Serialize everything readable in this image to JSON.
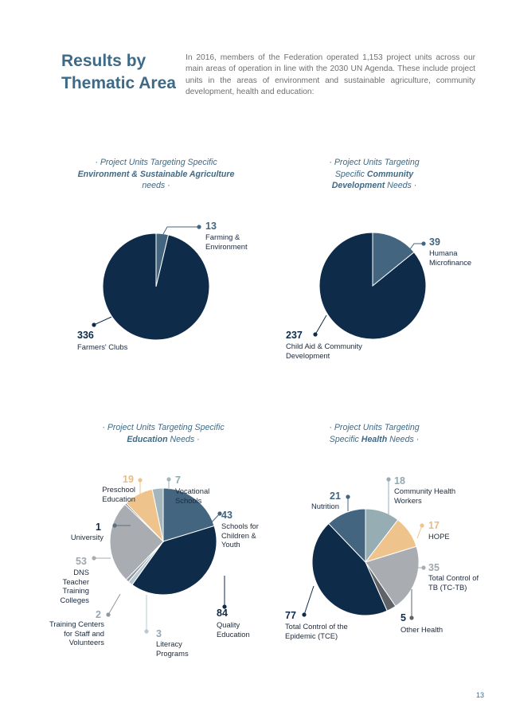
{
  "header": {
    "title_line1": "Results by",
    "title_line2": "Thematic Area",
    "intro": "In 2016, members of the Federation operated 1,153 project units across our main areas of operation in line with the 2030 UN Agenda. These include project units in the areas of environment and sustainable agriculture, community development, health and education:"
  },
  "page_number": "13",
  "chart_data": [
    {
      "type": "pie",
      "title": "· Project Units Targeting Specific Environment & Sustainable Agriculture needs ·",
      "title_parts": {
        "pre": "· Project Units Targeting Specific ",
        "bold": "Environment & Sustainable Agriculture",
        "post": " needs ·"
      },
      "slices": [
        {
          "label": "Farming & Environment",
          "value": 13,
          "color": "#44657f"
        },
        {
          "label": "Farmers' Clubs",
          "value": 336,
          "color": "#0f2b4a"
        }
      ]
    },
    {
      "type": "pie",
      "title": "· Project Units Targeting Specific Community Development Needs ·",
      "title_parts": {
        "pre": "· Project Units Targeting Specific ",
        "bold": "Community Development",
        "post": " Needs ·"
      },
      "slices": [
        {
          "label": "Humana Microfinance",
          "value": 39,
          "color": "#44657f"
        },
        {
          "label": "Child Aid & Community Development",
          "value": 237,
          "color": "#0f2b4a"
        }
      ]
    },
    {
      "type": "pie",
      "title": "· Project Units Targeting Specific Education Needs ·",
      "title_parts": {
        "pre": "· Project Units Targeting Specific ",
        "bold": "Education",
        "post": " Needs ·"
      },
      "slices": [
        {
          "label": "Schools for Children & Youth",
          "value": 43,
          "color": "#44657f"
        },
        {
          "label": "Quality Education",
          "value": 84,
          "color": "#0f2b4a"
        },
        {
          "label": "Literacy Programs",
          "value": 3,
          "color": "#b9c8cf"
        },
        {
          "label": "Training Centers for Staff and Volunteers",
          "value": 2,
          "color": "#8f98a0"
        },
        {
          "label": "DNS Teacher Training Colleges",
          "value": 53,
          "color": "#a9adb1"
        },
        {
          "label": "University",
          "value": 1,
          "color": "#5a6f80"
        },
        {
          "label": "Preschool Education",
          "value": 19,
          "color": "#eec48c"
        },
        {
          "label": "Vocational Schools",
          "value": 7,
          "color": "#a4b6bd"
        }
      ]
    },
    {
      "type": "pie",
      "title": "· Project Units Targeting Specific Health Needs ·",
      "title_parts": {
        "pre": "· Project Units Targeting Specific ",
        "bold": "Health",
        "post": " Needs ·"
      },
      "slices": [
        {
          "label": "Community Health Workers",
          "value": 18,
          "color": "#97adb4"
        },
        {
          "label": "HOPE",
          "value": 17,
          "color": "#eec48c"
        },
        {
          "label": "Total Control of TB (TC-TB)",
          "value": 35,
          "color": "#a9adb1"
        },
        {
          "label": "Other Health",
          "value": 5,
          "color": "#5f6367"
        },
        {
          "label": "Total Control of the Epidemic (TCE)",
          "value": 77,
          "color": "#0f2b4a"
        },
        {
          "label": "Nutrition",
          "value": 21,
          "color": "#44657f"
        }
      ]
    }
  ]
}
